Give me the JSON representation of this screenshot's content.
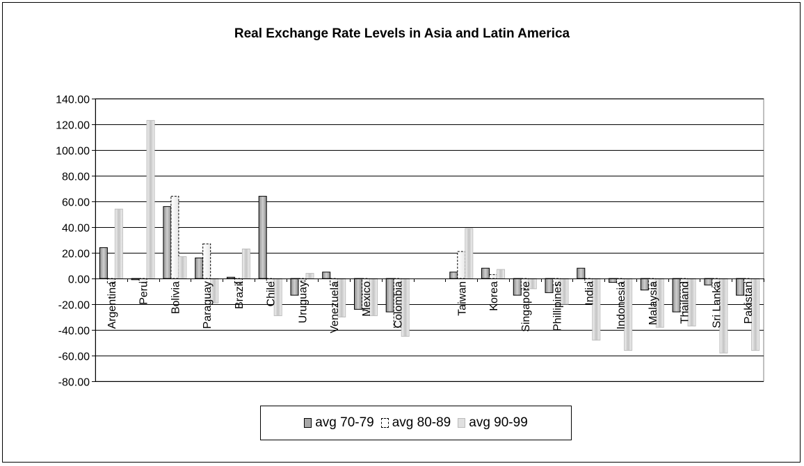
{
  "chart_data": {
    "type": "bar",
    "title": "Real Exchange Rate Levels in Asia and Latin America",
    "xlabel": "",
    "ylabel": "",
    "ylim": [
      -80,
      140
    ],
    "yticks": [
      "140.00",
      "120.00",
      "100.00",
      "80.00",
      "60.00",
      "40.00",
      "20.00",
      "0.00",
      "-20.00",
      "-40.00",
      "-60.00",
      "-80.00"
    ],
    "grid": true,
    "legend_position": "bottom",
    "categories": [
      "Argentina",
      "Peru",
      "Bolivia",
      "Paraguay",
      "Brazil",
      "Chile",
      "Uruguay",
      "Venezuela",
      "Mexico",
      "Colombia",
      "",
      "Taiwan",
      "Korea",
      "Singapore",
      "Phillipines",
      "India",
      "Indonesia",
      "Malaysia",
      "Thailand",
      "Sri Lanka",
      "Pakistan"
    ],
    "series": [
      {
        "name": "avg 70-79",
        "values": [
          24,
          -1,
          56,
          16,
          1,
          64,
          -13,
          5,
          -24,
          -26,
          null,
          5,
          8,
          -13,
          -11,
          8,
          -3,
          -9,
          -26,
          -5,
          -13
        ]
      },
      {
        "name": "avg 80-89",
        "values": [
          -4,
          -3,
          64,
          27,
          -4,
          -3,
          -2,
          -5,
          -25,
          -38,
          null,
          21,
          3,
          -8,
          -5,
          -3,
          -4,
          -5,
          -26,
          -7,
          -3
        ]
      },
      {
        "name": "avg 90-99",
        "values": [
          54,
          123,
          17,
          -19,
          23,
          -29,
          4,
          -30,
          -29,
          -45,
          null,
          39,
          7,
          -8,
          -20,
          -48,
          -56,
          -38,
          -37,
          -58,
          -56
        ]
      }
    ],
    "series_colors": [
      "#b0b0b0",
      "#ffffff",
      "#d6d6d6"
    ]
  }
}
